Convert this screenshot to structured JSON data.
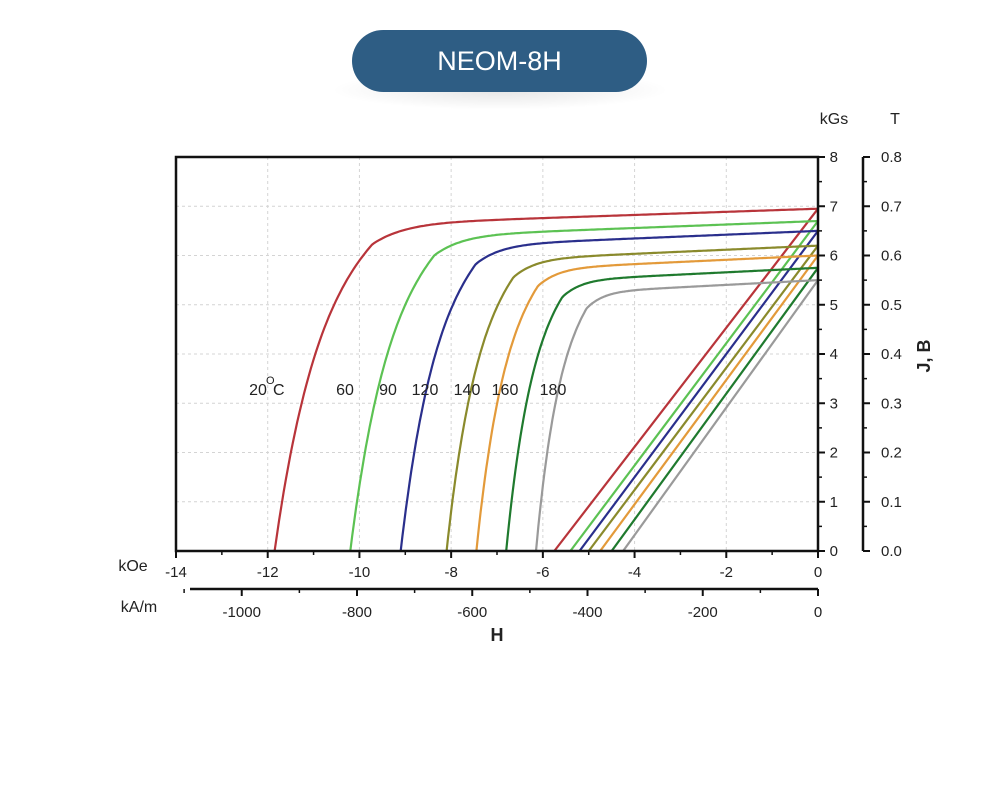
{
  "header": {
    "title": "NEOM-8H"
  },
  "chart_data": {
    "type": "line",
    "title": "NEOM-8H",
    "xlabel": "H",
    "ylabel": "J, B",
    "x_unit_koe": "kOe",
    "x_unit_kam": "kA/m",
    "y_unit_kgs": "kGs",
    "y_unit_t": "T",
    "xlim_koe": [
      -14,
      0
    ],
    "ylim_kgs": [
      0,
      8
    ],
    "x_ticks_koe": [
      "-14",
      "-12",
      "-10",
      "-8",
      "-6",
      "-4",
      "-2",
      "0"
    ],
    "x_ticks_kam": [
      "-1000",
      "-800",
      "-600",
      "-400",
      "-200",
      "0"
    ],
    "y_ticks_kgs": [
      "0",
      "1",
      "2",
      "3",
      "4",
      "5",
      "6",
      "7",
      "8"
    ],
    "y_ticks_t": [
      "0.0",
      "0.1",
      "0.2",
      "0.3",
      "0.4",
      "0.5",
      "0.6",
      "0.7",
      "0.8"
    ],
    "grid": true,
    "temperature_labels": [
      "20",
      "60",
      "90",
      "120",
      "140",
      "160",
      "180"
    ],
    "temperature_unit": "°C",
    "series": [
      {
        "temp": "20",
        "color": "#b8343a",
        "br": 6.95,
        "hcj": -11.85,
        "hcb": -5.75
      },
      {
        "temp": "60",
        "color": "#5cc253",
        "br": 6.7,
        "hcj": -10.2,
        "hcb": -5.4
      },
      {
        "temp": "90",
        "color": "#2a2f8c",
        "br": 6.5,
        "hcj": -9.1,
        "hcb": -5.2
      },
      {
        "temp": "120",
        "color": "#8a8a2c",
        "br": 6.2,
        "hcj": -8.1,
        "hcb": -5.0
      },
      {
        "temp": "140",
        "color": "#e39a3a",
        "br": 6.0,
        "hcj": -7.45,
        "hcb": -4.75
      },
      {
        "temp": "160",
        "color": "#1f7a2e",
        "br": 5.75,
        "hcj": -6.8,
        "hcb": -4.5
      },
      {
        "temp": "180",
        "color": "#9a9a9a",
        "br": 5.5,
        "hcj": -6.15,
        "hcb": -4.25
      }
    ]
  }
}
